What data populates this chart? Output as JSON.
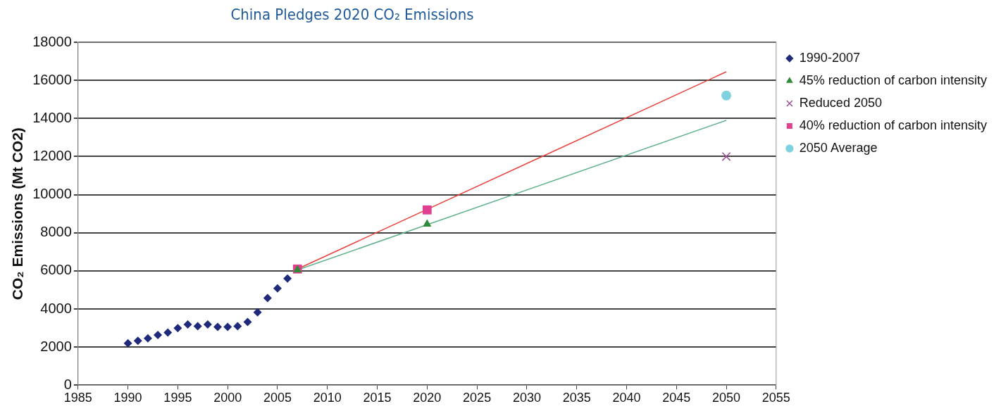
{
  "chart_data": {
    "type": "scatter",
    "title": "China Pledges 2020 CO₂ Emissions",
    "ylabel": "CO₂ Emissions (Mt CO2)",
    "xlim": [
      1985,
      2055
    ],
    "xticks": [
      1985,
      1990,
      1995,
      2000,
      2005,
      2010,
      2015,
      2020,
      2025,
      2030,
      2035,
      2040,
      2045,
      2050,
      2055
    ],
    "ylim": [
      0,
      18000
    ],
    "yticks": [
      0,
      2000,
      4000,
      6000,
      8000,
      10000,
      12000,
      14000,
      16000,
      18000
    ],
    "grid": "y",
    "legend": "top right",
    "series": [
      {
        "type": "line",
        "marker": "none",
        "color": "#e8403a",
        "x": [
          2007,
          2050
        ],
        "values": [
          6100,
          16450
        ]
      },
      {
        "type": "line",
        "marker": "none",
        "color": "#5fb08a",
        "x": [
          2007,
          2050
        ],
        "values": [
          6050,
          13900
        ]
      },
      {
        "name": "1990-2007",
        "marker": "diamond",
        "color": "#1f2a7a",
        "x": [
          1990,
          1991,
          1992,
          1993,
          1994,
          1995,
          1996,
          1997,
          1998,
          1999,
          2000,
          2001,
          2002,
          2003,
          2004,
          2005,
          2006
        ],
        "values": [
          2200,
          2330,
          2460,
          2640,
          2770,
          3000,
          3190,
          3100,
          3190,
          3060,
          3060,
          3100,
          3320,
          3830,
          4580,
          5080,
          5600
        ]
      },
      {
        "name": "45% reduction of carbon intensity",
        "marker": "triangle",
        "color": "#2e8b3a",
        "x": [
          2007,
          2020
        ],
        "values": [
          6050,
          8450
        ]
      },
      {
        "name": "Reduced 2050",
        "marker": "cross",
        "color": "#9b4f9b",
        "x": [
          2050
        ],
        "values": [
          12000
        ]
      },
      {
        "name": "40% reduction of carbon intensity",
        "marker": "square",
        "color": "#e0408f",
        "x": [
          2007,
          2020
        ],
        "values": [
          6100,
          9200
        ]
      },
      {
        "name": "2050 Average",
        "marker": "circle",
        "color": "#7fd3e0",
        "x": [
          2050
        ],
        "values": [
          15200
        ]
      }
    ]
  }
}
